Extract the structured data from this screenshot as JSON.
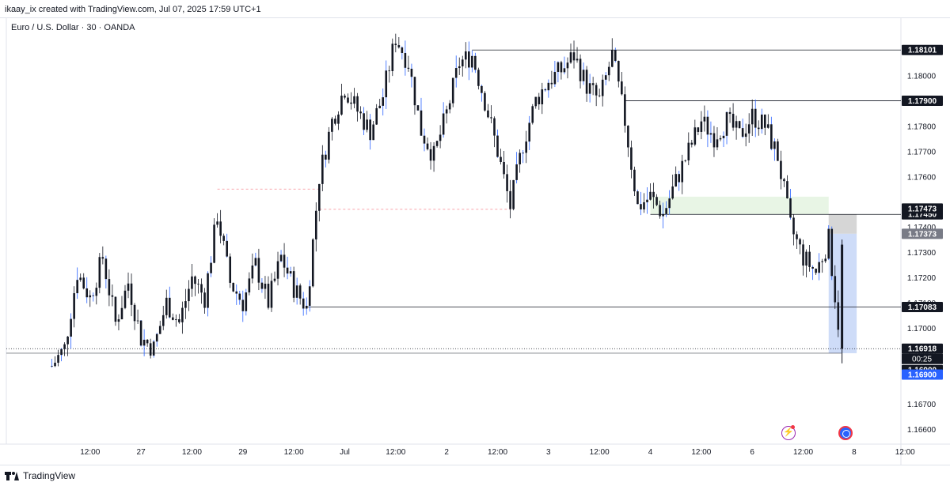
{
  "header": {
    "credit": "ikaay_ix created with TradingView.com, Jul 07, 2025 17:59 UTC+1",
    "symbol": "Euro / U.S. Dollar · 30 · OANDA"
  },
  "footer": {
    "brand": "TradingView"
  },
  "icons": {
    "footer_logo": "tradingview-logo-icon",
    "alert": "lightning-icon",
    "target": "target-icon"
  },
  "colors": {
    "candle": "#131722",
    "wick_blue": "#2962ff",
    "level_line": "#131722",
    "demand_zone": "#e4f3e1",
    "position_zone": "#c6d6f7",
    "stop_zone": "#cfcfcf",
    "current_label": "#131722",
    "target_label": "#2962ff",
    "grey_label": "#787b86"
  },
  "chart_data": {
    "type": "candlestick",
    "timeframe": "30",
    "y_axis_ticks": [
      1.181,
      1.18,
      1.179,
      1.178,
      1.177,
      1.176,
      1.174,
      1.173,
      1.172,
      1.171,
      1.17,
      1.169,
      1.167,
      1.166
    ],
    "ylim": [
      1.1654,
      1.1823
    ],
    "x_axis_ticks": [
      {
        "label": "12:00",
        "index": 3
      },
      {
        "label": "27",
        "index": 7
      },
      {
        "label": "12:00",
        "index": 11
      },
      {
        "label": "29",
        "index": 15
      },
      {
        "label": "12:00",
        "index": 19
      },
      {
        "label": "Jul",
        "index": 23
      },
      {
        "label": "12:00",
        "index": 27
      },
      {
        "label": "2",
        "index": 31
      },
      {
        "label": "12:00",
        "index": 35
      },
      {
        "label": "3",
        "index": 39
      },
      {
        "label": "12:00",
        "index": 43
      },
      {
        "label": "4",
        "index": 47
      },
      {
        "label": "12:00",
        "index": 51
      },
      {
        "label": "6",
        "index": 55
      },
      {
        "label": "12:00",
        "index": 59
      },
      {
        "label": "8",
        "index": 63
      },
      {
        "label": "12:00",
        "index": 67
      }
    ],
    "price_path": [
      [
        0,
        1.1685
      ],
      [
        1,
        1.1692
      ],
      [
        2,
        1.1722
      ],
      [
        3,
        1.1712
      ],
      [
        4,
        1.1728
      ],
      [
        5,
        1.1702
      ],
      [
        6,
        1.1718
      ],
      [
        7,
        1.1696
      ],
      [
        8,
        1.1692
      ],
      [
        9,
        1.171
      ],
      [
        10,
        1.1702
      ],
      [
        11,
        1.172
      ],
      [
        12,
        1.1712
      ],
      [
        13,
        1.1745
      ],
      [
        14,
        1.1718
      ],
      [
        15,
        1.171
      ],
      [
        16,
        1.1725
      ],
      [
        17,
        1.171
      ],
      [
        18,
        1.1728
      ],
      [
        19,
        1.1716
      ],
      [
        20,
        1.1708
      ],
      [
        21,
        1.176
      ],
      [
        22,
        1.1782
      ],
      [
        23,
        1.1795
      ],
      [
        24,
        1.1786
      ],
      [
        25,
        1.1778
      ],
      [
        26,
        1.1792
      ],
      [
        27,
        1.1815
      ],
      [
        28,
        1.1805
      ],
      [
        29,
        1.1778
      ],
      [
        30,
        1.1768
      ],
      [
        31,
        1.1785
      ],
      [
        32,
        1.1805
      ],
      [
        33,
        1.1808
      ],
      [
        34,
        1.179
      ],
      [
        35,
        1.177
      ],
      [
        36,
        1.1748
      ],
      [
        37,
        1.1773
      ],
      [
        38,
        1.179
      ],
      [
        39,
        1.1798
      ],
      [
        40,
        1.1802
      ],
      [
        41,
        1.1808
      ],
      [
        42,
        1.1796
      ],
      [
        43,
        1.179
      ],
      [
        44,
        1.1808
      ],
      [
        45,
        1.1782
      ],
      [
        46,
        1.1748
      ],
      [
        47,
        1.1752
      ],
      [
        48,
        1.1745
      ],
      [
        49,
        1.1758
      ],
      [
        50,
        1.177
      ],
      [
        51,
        1.1782
      ],
      [
        52,
        1.1776
      ],
      [
        53,
        1.1782
      ],
      [
        54,
        1.1776
      ],
      [
        55,
        1.1784
      ],
      [
        56,
        1.178
      ],
      [
        57,
        1.1768
      ],
      [
        58,
        1.174
      ],
      [
        59,
        1.1728
      ],
      [
        60,
        1.1722
      ],
      [
        61,
        1.1735
      ],
      [
        62,
        1.1691
      ]
    ],
    "horizontal_levels": [
      {
        "label": "1.18101",
        "value": 1.18101,
        "from_index": 33
      },
      {
        "label": "1.17900",
        "value": 1.179,
        "from_index": 45
      },
      {
        "label": "1.17450",
        "value": 1.1745,
        "from_index": 47
      },
      {
        "label": "1.17083",
        "value": 1.17083,
        "from_index": 20
      }
    ],
    "dashed_levels": [
      {
        "value": 1.1755,
        "from_index": 13,
        "to_index": 21
      },
      {
        "value": 1.1747,
        "from_index": 21,
        "to_index": 36
      }
    ],
    "price_labels": [
      {
        "label": "1.17473",
        "value": 1.17473,
        "style": "dark"
      },
      {
        "label": "1.17373",
        "value": 1.17373,
        "style": "grey"
      },
      {
        "label": "1.16918",
        "value": 1.16918,
        "style": "dark",
        "countdown": "00:25"
      },
      {
        "label": "1.16900",
        "value": 1.169,
        "style": "dark"
      },
      {
        "label": "1.16900",
        "value": 1.169,
        "style": "blue"
      }
    ],
    "zones": [
      {
        "type": "demand",
        "from_index": 47,
        "to_index": 61,
        "top": 1.1752,
        "bottom": 1.1745
      },
      {
        "type": "stop",
        "from_index": 61,
        "to_index": 63.2,
        "top": 1.1745,
        "bottom": 1.17373
      },
      {
        "type": "target",
        "from_index": 61,
        "to_index": 63.2,
        "top": 1.17373,
        "bottom": 1.169
      }
    ],
    "current_price": 1.16918
  }
}
